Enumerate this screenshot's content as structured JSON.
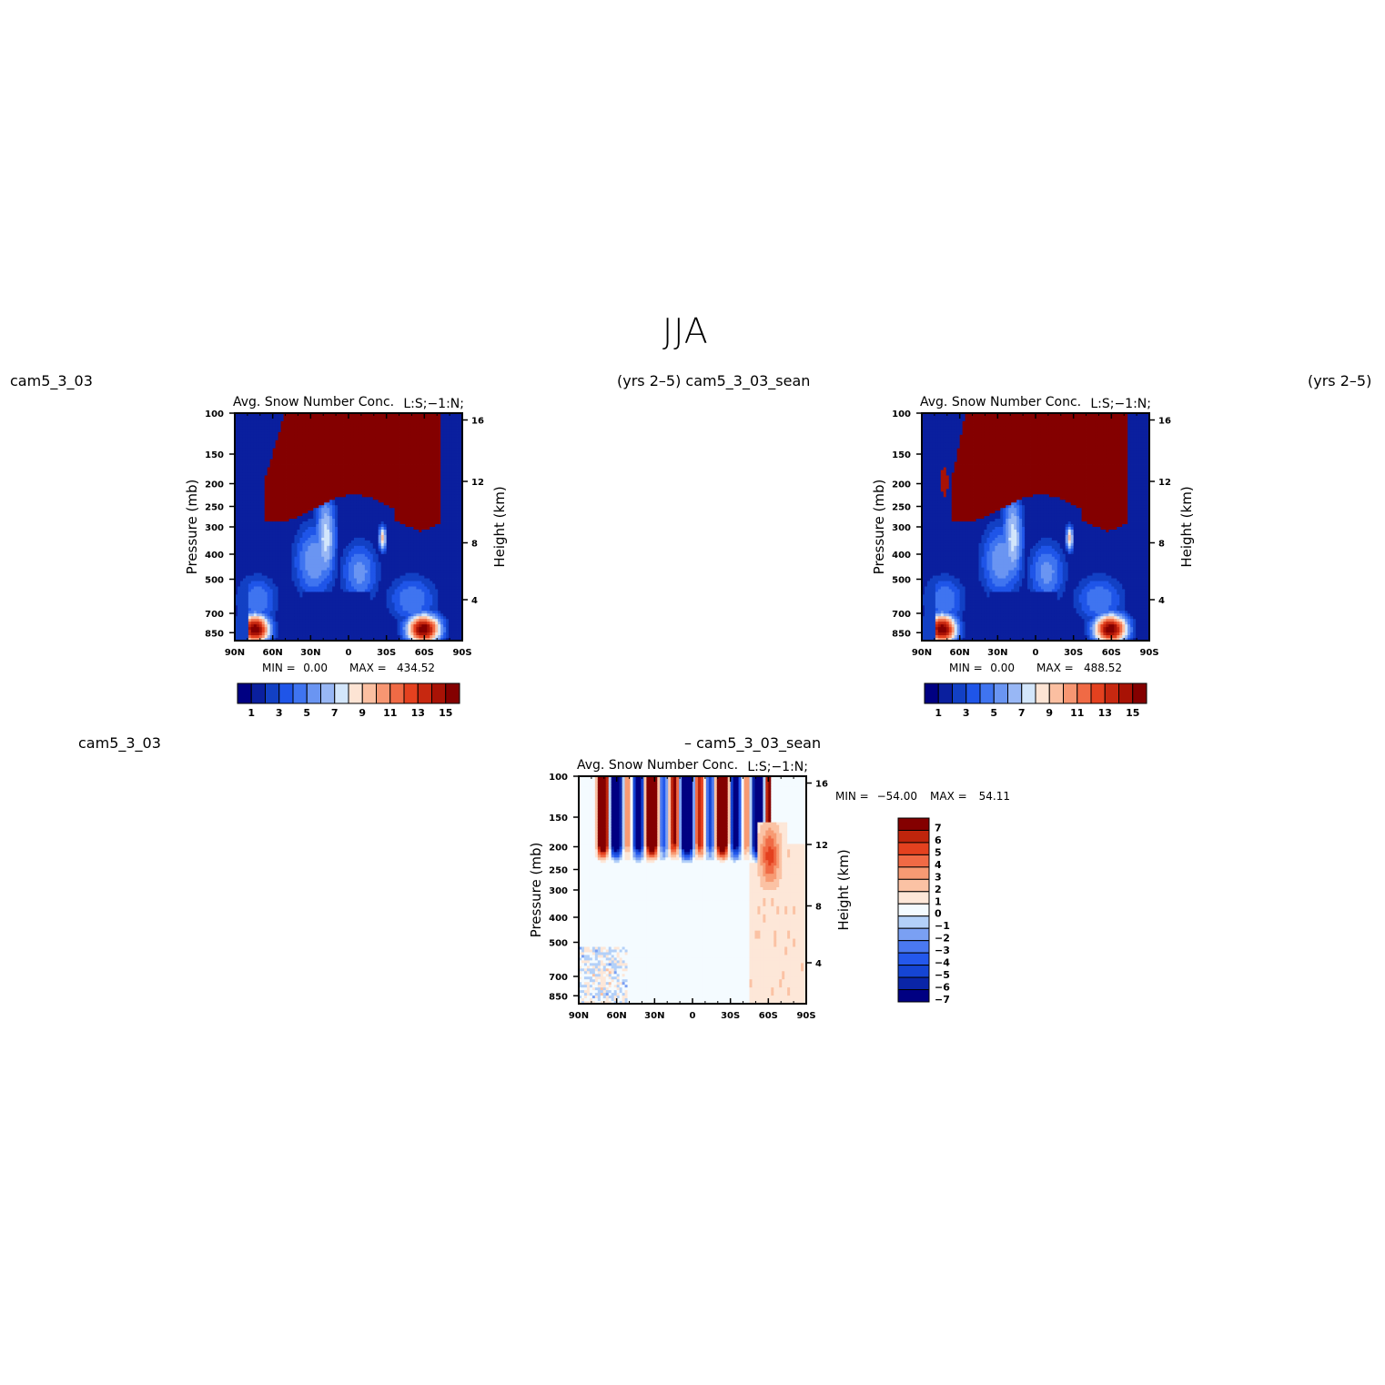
{
  "page": {
    "title": "JJA",
    "labels": {
      "top_left_case": "cam5_3_03",
      "top_middle_case": "(yrs 2–5) cam5_3_03_sean",
      "top_right_years": "(yrs 2–5)",
      "bottom_left_case": "cam5_3_03",
      "bottom_diff_case": "– cam5_3_03_sean"
    }
  },
  "colors": {
    "blue_red_16": [
      "#000082",
      "#0a1f9e",
      "#1240c4",
      "#1f55e8",
      "#3f74f0",
      "#6a95f2",
      "#98b7f5",
      "#d3e6fb",
      "#fde4d4",
      "#fbbfa1",
      "#f79672",
      "#f06a45",
      "#e4411f",
      "#c72810",
      "#a81205",
      "#840000"
    ],
    "diff_15": [
      "#000082",
      "#0a25a8",
      "#1545d4",
      "#2458ec",
      "#4a78f0",
      "#7aa0f3",
      "#b3d0f8",
      "#f4fbff",
      "#fde7d8",
      "#fbc2a4",
      "#f79a73",
      "#f06a45",
      "#e4411f",
      "#bf250c",
      "#840000"
    ]
  },
  "chart_data": [
    {
      "type": "heatmap",
      "panel": "model",
      "title": "Avg. Snow Number Conc.",
      "units_label": "L:S;−1:N;",
      "xlabel": "",
      "ylabel": "Pressure (mb)",
      "ylabel_right": "Height (km)",
      "x_ticks": [
        "90N",
        "60N",
        "30N",
        "0",
        "30S",
        "60S",
        "90S"
      ],
      "y_ticks": [
        "100",
        "150",
        "200",
        "250",
        "300",
        "400",
        "500",
        "700",
        "850"
      ],
      "y_right_ticks": [
        "16",
        "12",
        "8",
        "4"
      ],
      "stats": {
        "min_label": "MIN =",
        "min": "0.00",
        "max_label": "MAX =",
        "max": "434.52"
      },
      "colorbar": {
        "orientation": "horizontal",
        "labels": [
          "1",
          "3",
          "5",
          "7",
          "9",
          "11",
          "13",
          "15"
        ],
        "levels": 16
      },
      "ylim": [
        1000,
        100
      ]
    },
    {
      "type": "heatmap",
      "panel": "control",
      "title": "Avg. Snow Number Conc.",
      "units_label": "L:S;−1:N;",
      "xlabel": "",
      "ylabel": "Pressure (mb)",
      "ylabel_right": "Height (km)",
      "x_ticks": [
        "90N",
        "60N",
        "30N",
        "0",
        "30S",
        "60S",
        "90S"
      ],
      "y_ticks": [
        "100",
        "150",
        "200",
        "250",
        "300",
        "400",
        "500",
        "700",
        "850"
      ],
      "y_right_ticks": [
        "16",
        "12",
        "8",
        "4"
      ],
      "stats": {
        "min_label": "MIN =",
        "min": "0.00",
        "max_label": "MAX =",
        "max": "488.52"
      },
      "colorbar": {
        "orientation": "horizontal",
        "labels": [
          "1",
          "3",
          "5",
          "7",
          "9",
          "11",
          "13",
          "15"
        ],
        "levels": 16
      },
      "ylim": [
        1000,
        100
      ]
    },
    {
      "type": "heatmap",
      "panel": "difference",
      "title": "Avg. Snow Number Conc.",
      "units_label": "L:S;−1:N;",
      "xlabel": "",
      "ylabel": "Pressure (mb)",
      "ylabel_right": "Height (km)",
      "x_ticks": [
        "90N",
        "60N",
        "30N",
        "0",
        "30S",
        "60S",
        "90S"
      ],
      "y_ticks": [
        "100",
        "150",
        "200",
        "250",
        "300",
        "400",
        "500",
        "700",
        "850"
      ],
      "y_right_ticks": [
        "16",
        "12",
        "8",
        "4"
      ],
      "stats": {
        "min_label": "MIN =",
        "min": "−54.00",
        "max_label": "MAX =",
        "max": "54.11"
      },
      "colorbar": {
        "orientation": "vertical",
        "labels": [
          "7",
          "6",
          "5",
          "4",
          "3",
          "2",
          "1",
          "0",
          "−1",
          "−2",
          "−3",
          "−4",
          "−5",
          "−6",
          "−7"
        ],
        "levels": 15
      },
      "ylim": [
        1000,
        100
      ]
    }
  ]
}
